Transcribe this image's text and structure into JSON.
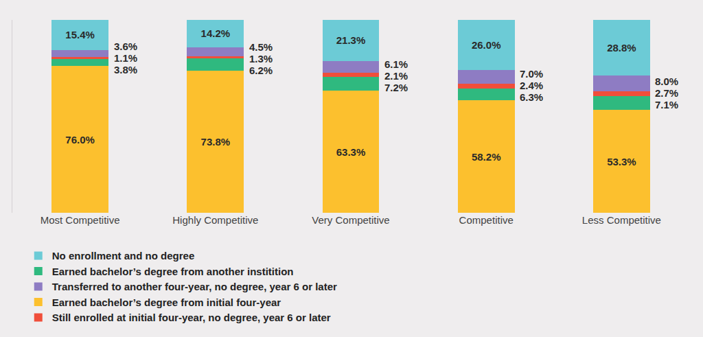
{
  "chart_data": {
    "type": "bar",
    "stacked": true,
    "data_labels": true,
    "tick_labels": "x",
    "grid": false,
    "legend": "bottom",
    "categories": [
      "Most Competitive",
      "Highly Competitive",
      "Very Competitive",
      "Competitive",
      "Less Competitive"
    ],
    "ylim": [
      0,
      100
    ],
    "series": [
      {
        "name": "Earned bachelor’s degree from initial four-year",
        "color": "#fcc02e",
        "values": [
          76.0,
          73.8,
          63.3,
          58.2,
          53.3
        ],
        "value_labels": [
          "76.0%",
          "73.8%",
          "63.3%",
          "58.2%",
          "53.3%"
        ]
      },
      {
        "name": "Earned bachelor’s degree from another institition",
        "color": "#2fb97f",
        "values": [
          3.8,
          6.2,
          7.2,
          6.3,
          7.1
        ],
        "value_labels": [
          "3.8%",
          "6.2%",
          "7.2%",
          "6.3%",
          "7.1%"
        ]
      },
      {
        "name": "Still enrolled at initial four-year, no degree, year 6 or later",
        "color": "#f04e3a",
        "values": [
          1.1,
          1.3,
          2.1,
          2.4,
          2.7
        ],
        "value_labels": [
          "1.1%",
          "1.3%",
          "2.1%",
          "2.4%",
          "2.7%"
        ]
      },
      {
        "name": "Transferred to another four-year, no degree, year 6 or later",
        "color": "#8e7cc3",
        "values": [
          3.6,
          4.5,
          6.1,
          7.0,
          8.0
        ],
        "value_labels": [
          "3.6%",
          "4.5%",
          "6.1%",
          "7.0%",
          "8.0%"
        ]
      },
      {
        "name": "No enrollment and no degree",
        "color": "#6ccbd6",
        "values": [
          15.4,
          14.2,
          21.3,
          26.0,
          28.8
        ],
        "value_labels": [
          "15.4%",
          "14.2%",
          "21.3%",
          "26.0%",
          "28.8%"
        ]
      }
    ]
  }
}
